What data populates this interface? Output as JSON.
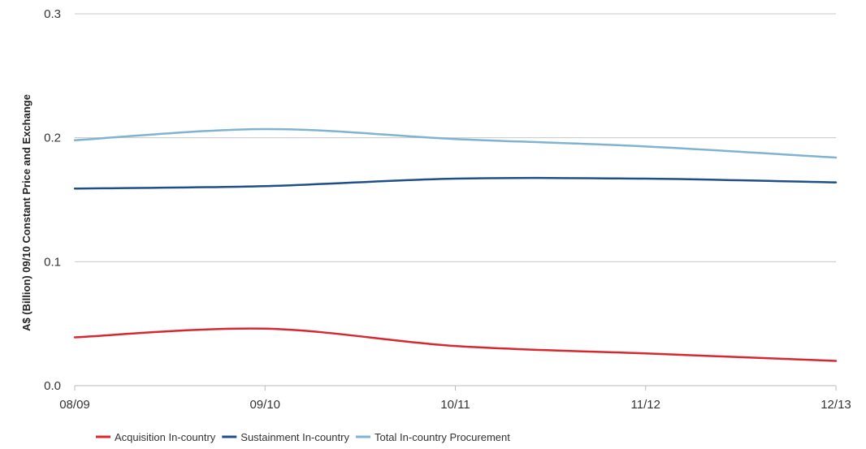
{
  "chart_data": {
    "type": "line",
    "title": "",
    "xlabel": "",
    "ylabel": "A$ (Billion) 09/10 Constant Price and Exchange",
    "categories": [
      "08/09",
      "09/10",
      "10/11",
      "11/12",
      "12/13"
    ],
    "ylim": [
      0,
      0.3
    ],
    "yticks": [
      "0.0",
      "0.1",
      "0.2",
      "0.3"
    ],
    "grid": true,
    "legend_position": "bottom-left",
    "series": [
      {
        "name": "Acquisition In-country",
        "color": "#d7282f",
        "values": [
          0.039,
          0.046,
          0.032,
          0.026,
          0.02
        ]
      },
      {
        "name": "Sustainment In-country",
        "color": "#1f4e89",
        "values": [
          0.159,
          0.161,
          0.167,
          0.167,
          0.164
        ]
      },
      {
        "name": "Total In-country Procurement",
        "color": "#7fb3d1",
        "values": [
          0.198,
          0.207,
          0.199,
          0.193,
          0.184
        ]
      }
    ]
  }
}
